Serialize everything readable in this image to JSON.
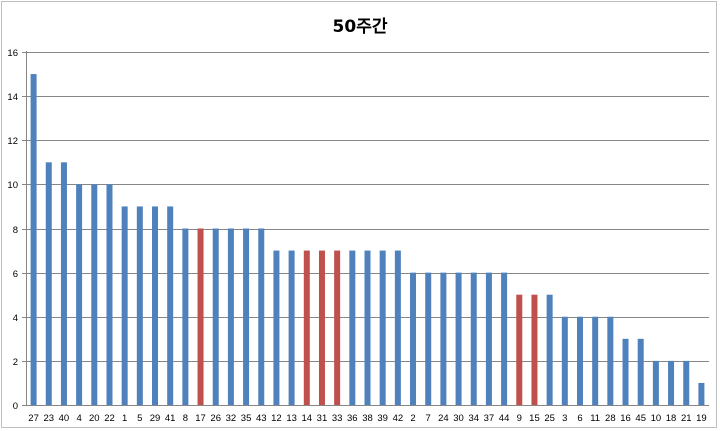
{
  "chart_data": {
    "type": "bar",
    "title": "50주간",
    "xlabel": "",
    "ylabel": "",
    "ylim": [
      0,
      16
    ],
    "yticks": [
      0,
      2,
      4,
      6,
      8,
      10,
      12,
      14,
      16
    ],
    "grid": true,
    "legend": "none",
    "colors": {
      "default": "#4f81bd",
      "highlight": "#c0504d"
    },
    "categories": [
      "27",
      "23",
      "40",
      "4",
      "20",
      "22",
      "1",
      "5",
      "29",
      "41",
      "8",
      "17",
      "26",
      "32",
      "35",
      "43",
      "12",
      "13",
      "14",
      "31",
      "33",
      "36",
      "38",
      "39",
      "42",
      "2",
      "7",
      "24",
      "30",
      "34",
      "37",
      "44",
      "9",
      "15",
      "25",
      "3",
      "6",
      "11",
      "28",
      "16",
      "45",
      "10",
      "18",
      "21",
      "19"
    ],
    "values": [
      15,
      11,
      11,
      10,
      10,
      10,
      9,
      9,
      9,
      9,
      8,
      8,
      8,
      8,
      8,
      8,
      7,
      7,
      7,
      7,
      7,
      7,
      7,
      7,
      7,
      6,
      6,
      6,
      6,
      6,
      6,
      6,
      5,
      5,
      5,
      4,
      4,
      4,
      4,
      3,
      3,
      2,
      2,
      2,
      1
    ],
    "highlighted": [
      "17",
      "14",
      "31",
      "33",
      "9",
      "15"
    ]
  }
}
